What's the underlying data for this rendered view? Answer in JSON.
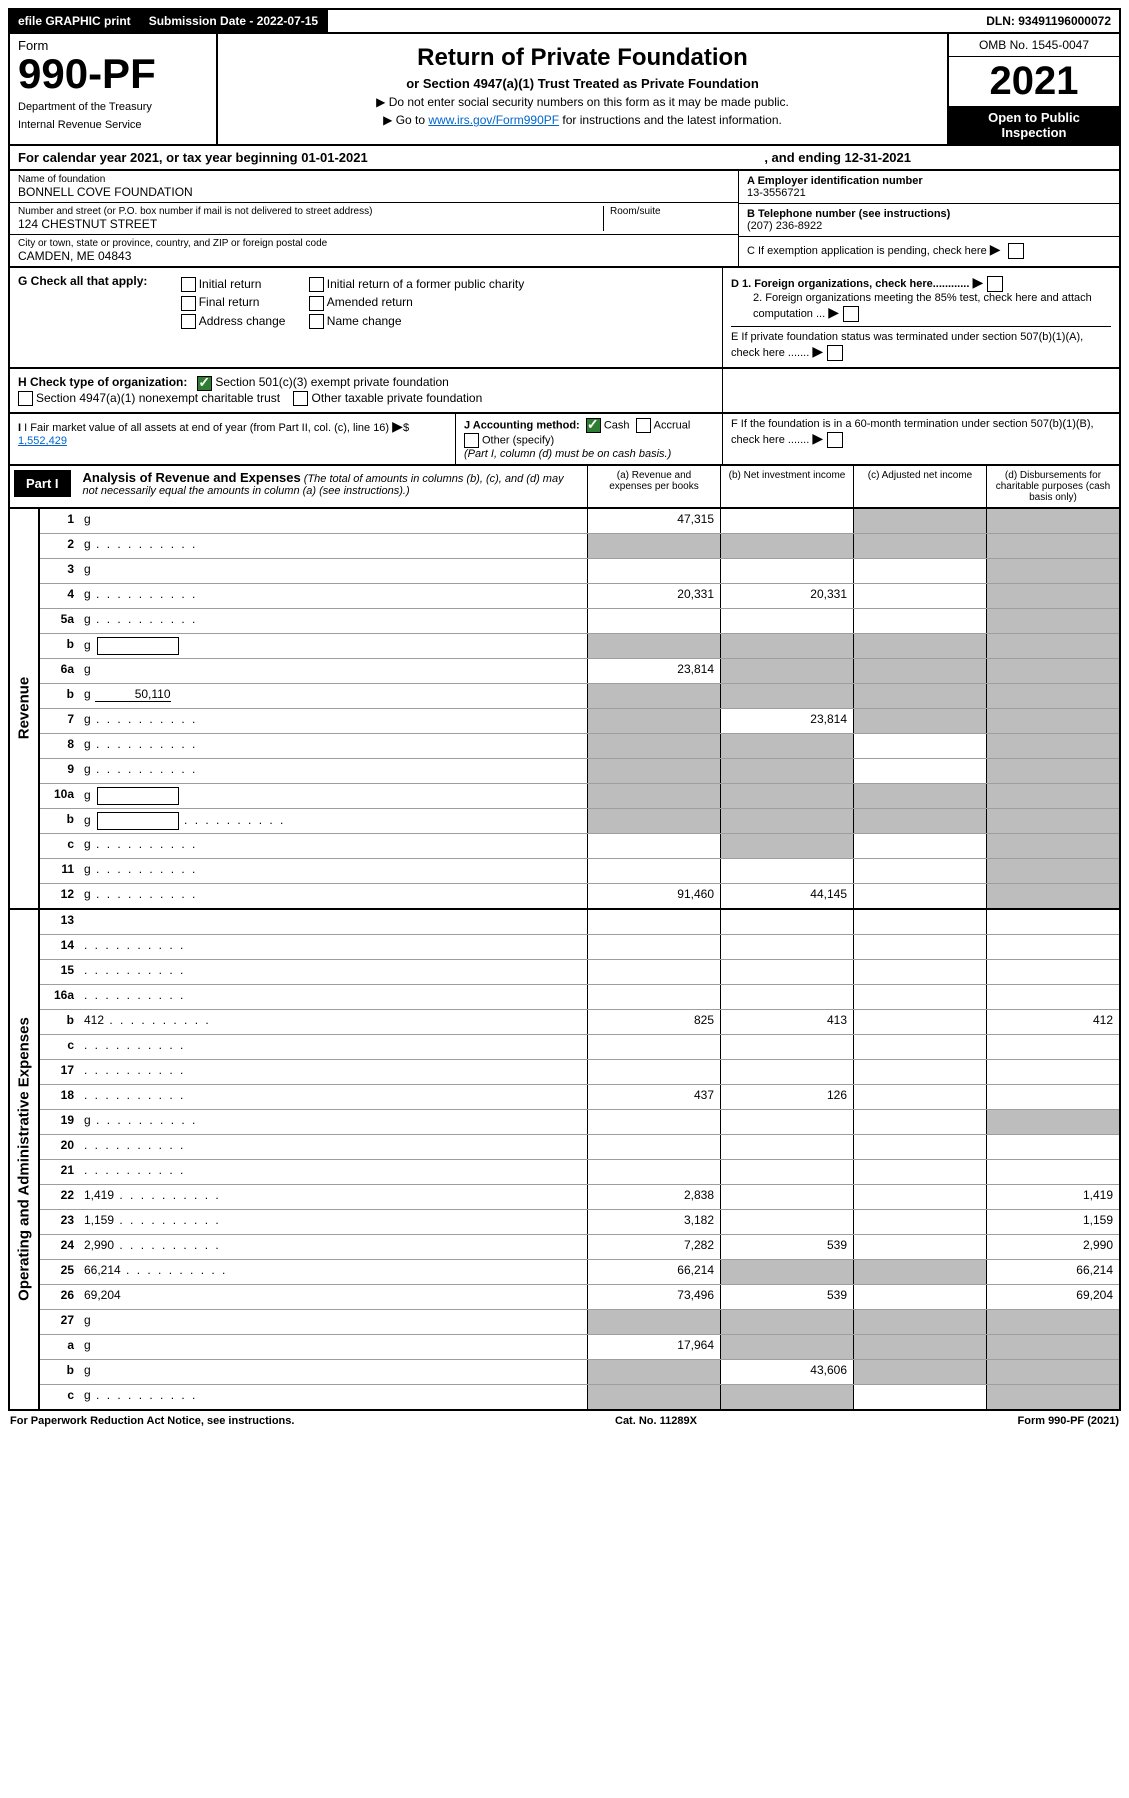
{
  "topbar": {
    "efile": "efile GRAPHIC print",
    "sub_label": "Submission Date - 2022-07-15",
    "dln": "DLN: 93491196000072"
  },
  "header": {
    "form_word": "Form",
    "form_number": "990-PF",
    "dept1": "Department of the Treasury",
    "dept2": "Internal Revenue Service",
    "title": "Return of Private Foundation",
    "subtitle": "or Section 4947(a)(1) Trust Treated as Private Foundation",
    "note1": "▶ Do not enter social security numbers on this form as it may be made public.",
    "note2_pre": "▶ Go to ",
    "note2_link": "www.irs.gov/Form990PF",
    "note2_post": " for instructions and the latest information.",
    "omb": "OMB No. 1545-0047",
    "year": "2021",
    "inspection1": "Open to Public",
    "inspection2": "Inspection"
  },
  "calendar": {
    "text_a": "For calendar year 2021, or tax year beginning 01-01-2021",
    "text_b": ", and ending 12-31-2021"
  },
  "info": {
    "name_label": "Name of foundation",
    "name": "BONNELL COVE FOUNDATION",
    "addr_label": "Number and street (or P.O. box number if mail is not delivered to street address)",
    "addr": "124 CHESTNUT STREET",
    "room_label": "Room/suite",
    "city_label": "City or town, state or province, country, and ZIP or foreign postal code",
    "city": "CAMDEN, ME  04843",
    "A_label": "A Employer identification number",
    "A_value": "13-3556721",
    "B_label": "B Telephone number (see instructions)",
    "B_value": "(207) 236-8922",
    "C_label": "C If exemption application is pending, check here"
  },
  "G": {
    "label": "G Check all that apply:",
    "opts": [
      "Initial return",
      "Final return",
      "Address change",
      "Initial return of a former public charity",
      "Amended return",
      "Name change"
    ],
    "D1": "D 1. Foreign organizations, check here............",
    "D2": "2. Foreign organizations meeting the 85% test, check here and attach computation ...",
    "E": "E  If private foundation status was terminated under section 507(b)(1)(A), check here ......."
  },
  "H": {
    "label": "H Check type of organization:",
    "opt1": "Section 501(c)(3) exempt private foundation",
    "opt2": "Section 4947(a)(1) nonexempt charitable trust",
    "opt3": "Other taxable private foundation",
    "I_label": "I Fair market value of all assets at end of year (from Part II, col. (c), line 16)",
    "I_value": "1,552,429",
    "J_label": "J Accounting method:",
    "J_cash": "Cash",
    "J_accrual": "Accrual",
    "J_other": "Other (specify)",
    "J_note": "(Part I, column (d) must be on cash basis.)",
    "F": "F  If the foundation is in a 60-month termination under section 507(b)(1)(B), check here ......."
  },
  "part1": {
    "tag": "Part I",
    "title": "Analysis of Revenue and Expenses",
    "title_note": " (The total of amounts in columns (b), (c), and (d) may not necessarily equal the amounts in column (a) (see instructions).)",
    "cols": {
      "a": "(a)  Revenue and expenses per books",
      "b": "(b)  Net investment income",
      "c": "(c)  Adjusted net income",
      "d": "(d)  Disbursements for charitable purposes (cash basis only)"
    }
  },
  "side_labels": {
    "revenue": "Revenue",
    "expenses": "Operating and Administrative Expenses"
  },
  "rows": [
    {
      "n": "1",
      "d": "g",
      "a": "47,315",
      "b": "",
      "c": "g"
    },
    {
      "n": "2",
      "d": "g",
      "dots": true,
      "a": "g",
      "b": "g",
      "c": "g"
    },
    {
      "n": "3",
      "d": "g",
      "a": "",
      "b": "",
      "c": ""
    },
    {
      "n": "4",
      "d": "g",
      "dots": true,
      "a": "20,331",
      "b": "20,331",
      "c": ""
    },
    {
      "n": "5a",
      "d": "g",
      "dots": true,
      "a": "",
      "b": "",
      "c": ""
    },
    {
      "n": "b",
      "d": "g",
      "box": true,
      "a": "g",
      "b": "g",
      "c": "g"
    },
    {
      "n": "6a",
      "d": "g",
      "a": "23,814",
      "b": "g",
      "c": "g"
    },
    {
      "n": "b",
      "d": "g",
      "inline": "50,110",
      "a": "g",
      "b": "g",
      "c": "g"
    },
    {
      "n": "7",
      "d": "g",
      "dots": true,
      "a": "g",
      "b": "23,814",
      "c": "g"
    },
    {
      "n": "8",
      "d": "g",
      "dots": true,
      "a": "g",
      "b": "g",
      "c": ""
    },
    {
      "n": "9",
      "d": "g",
      "dots": true,
      "a": "g",
      "b": "g",
      "c": ""
    },
    {
      "n": "10a",
      "d": "g",
      "box": true,
      "a": "g",
      "b": "g",
      "c": "g"
    },
    {
      "n": "b",
      "d": "g",
      "dots": true,
      "box": true,
      "a": "g",
      "b": "g",
      "c": "g"
    },
    {
      "n": "c",
      "d": "g",
      "dots": true,
      "a": "",
      "b": "g",
      "c": ""
    },
    {
      "n": "11",
      "d": "g",
      "dots": true,
      "a": "",
      "b": "",
      "c": ""
    },
    {
      "n": "12",
      "d": "g",
      "dots": true,
      "a": "91,460",
      "b": "44,145",
      "c": ""
    }
  ],
  "exp_rows": [
    {
      "n": "13",
      "d": "",
      "a": "",
      "b": "",
      "c": ""
    },
    {
      "n": "14",
      "d": "",
      "dots": true,
      "a": "",
      "b": "",
      "c": ""
    },
    {
      "n": "15",
      "d": "",
      "dots": true,
      "a": "",
      "b": "",
      "c": ""
    },
    {
      "n": "16a",
      "d": "",
      "dots": true,
      "a": "",
      "b": "",
      "c": ""
    },
    {
      "n": "b",
      "d": "412",
      "dots": true,
      "a": "825",
      "b": "413",
      "c": ""
    },
    {
      "n": "c",
      "d": "",
      "dots": true,
      "a": "",
      "b": "",
      "c": ""
    },
    {
      "n": "17",
      "d": "",
      "dots": true,
      "a": "",
      "b": "",
      "c": ""
    },
    {
      "n": "18",
      "d": "",
      "dots": true,
      "a": "437",
      "b": "126",
      "c": ""
    },
    {
      "n": "19",
      "d": "g",
      "dots": true,
      "a": "",
      "b": "",
      "c": ""
    },
    {
      "n": "20",
      "d": "",
      "dots": true,
      "a": "",
      "b": "",
      "c": ""
    },
    {
      "n": "21",
      "d": "",
      "dots": true,
      "a": "",
      "b": "",
      "c": ""
    },
    {
      "n": "22",
      "d": "1,419",
      "dots": true,
      "a": "2,838",
      "b": "",
      "c": ""
    },
    {
      "n": "23",
      "d": "1,159",
      "dots": true,
      "a": "3,182",
      "b": "",
      "c": ""
    },
    {
      "n": "24",
      "d": "2,990",
      "dots": true,
      "a": "7,282",
      "b": "539",
      "c": ""
    },
    {
      "n": "25",
      "d": "66,214",
      "dots": true,
      "a": "66,214",
      "b": "g",
      "c": "g"
    },
    {
      "n": "26",
      "d": "69,204",
      "a": "73,496",
      "b": "539",
      "c": ""
    },
    {
      "n": "27",
      "d": "g",
      "a": "g",
      "b": "g",
      "c": "g"
    },
    {
      "n": "a",
      "d": "g",
      "a": "17,964",
      "b": "g",
      "c": "g"
    },
    {
      "n": "b",
      "d": "g",
      "a": "g",
      "b": "43,606",
      "c": "g"
    },
    {
      "n": "c",
      "d": "g",
      "dots": true,
      "a": "g",
      "b": "g",
      "c": ""
    }
  ],
  "footer": {
    "left": "For Paperwork Reduction Act Notice, see instructions.",
    "mid": "Cat. No. 11289X",
    "right": "Form 990-PF (2021)"
  },
  "colors": {
    "grey_cell": "#bdbdbd",
    "link": "#0066cc",
    "check_green": "#2e7d32"
  }
}
